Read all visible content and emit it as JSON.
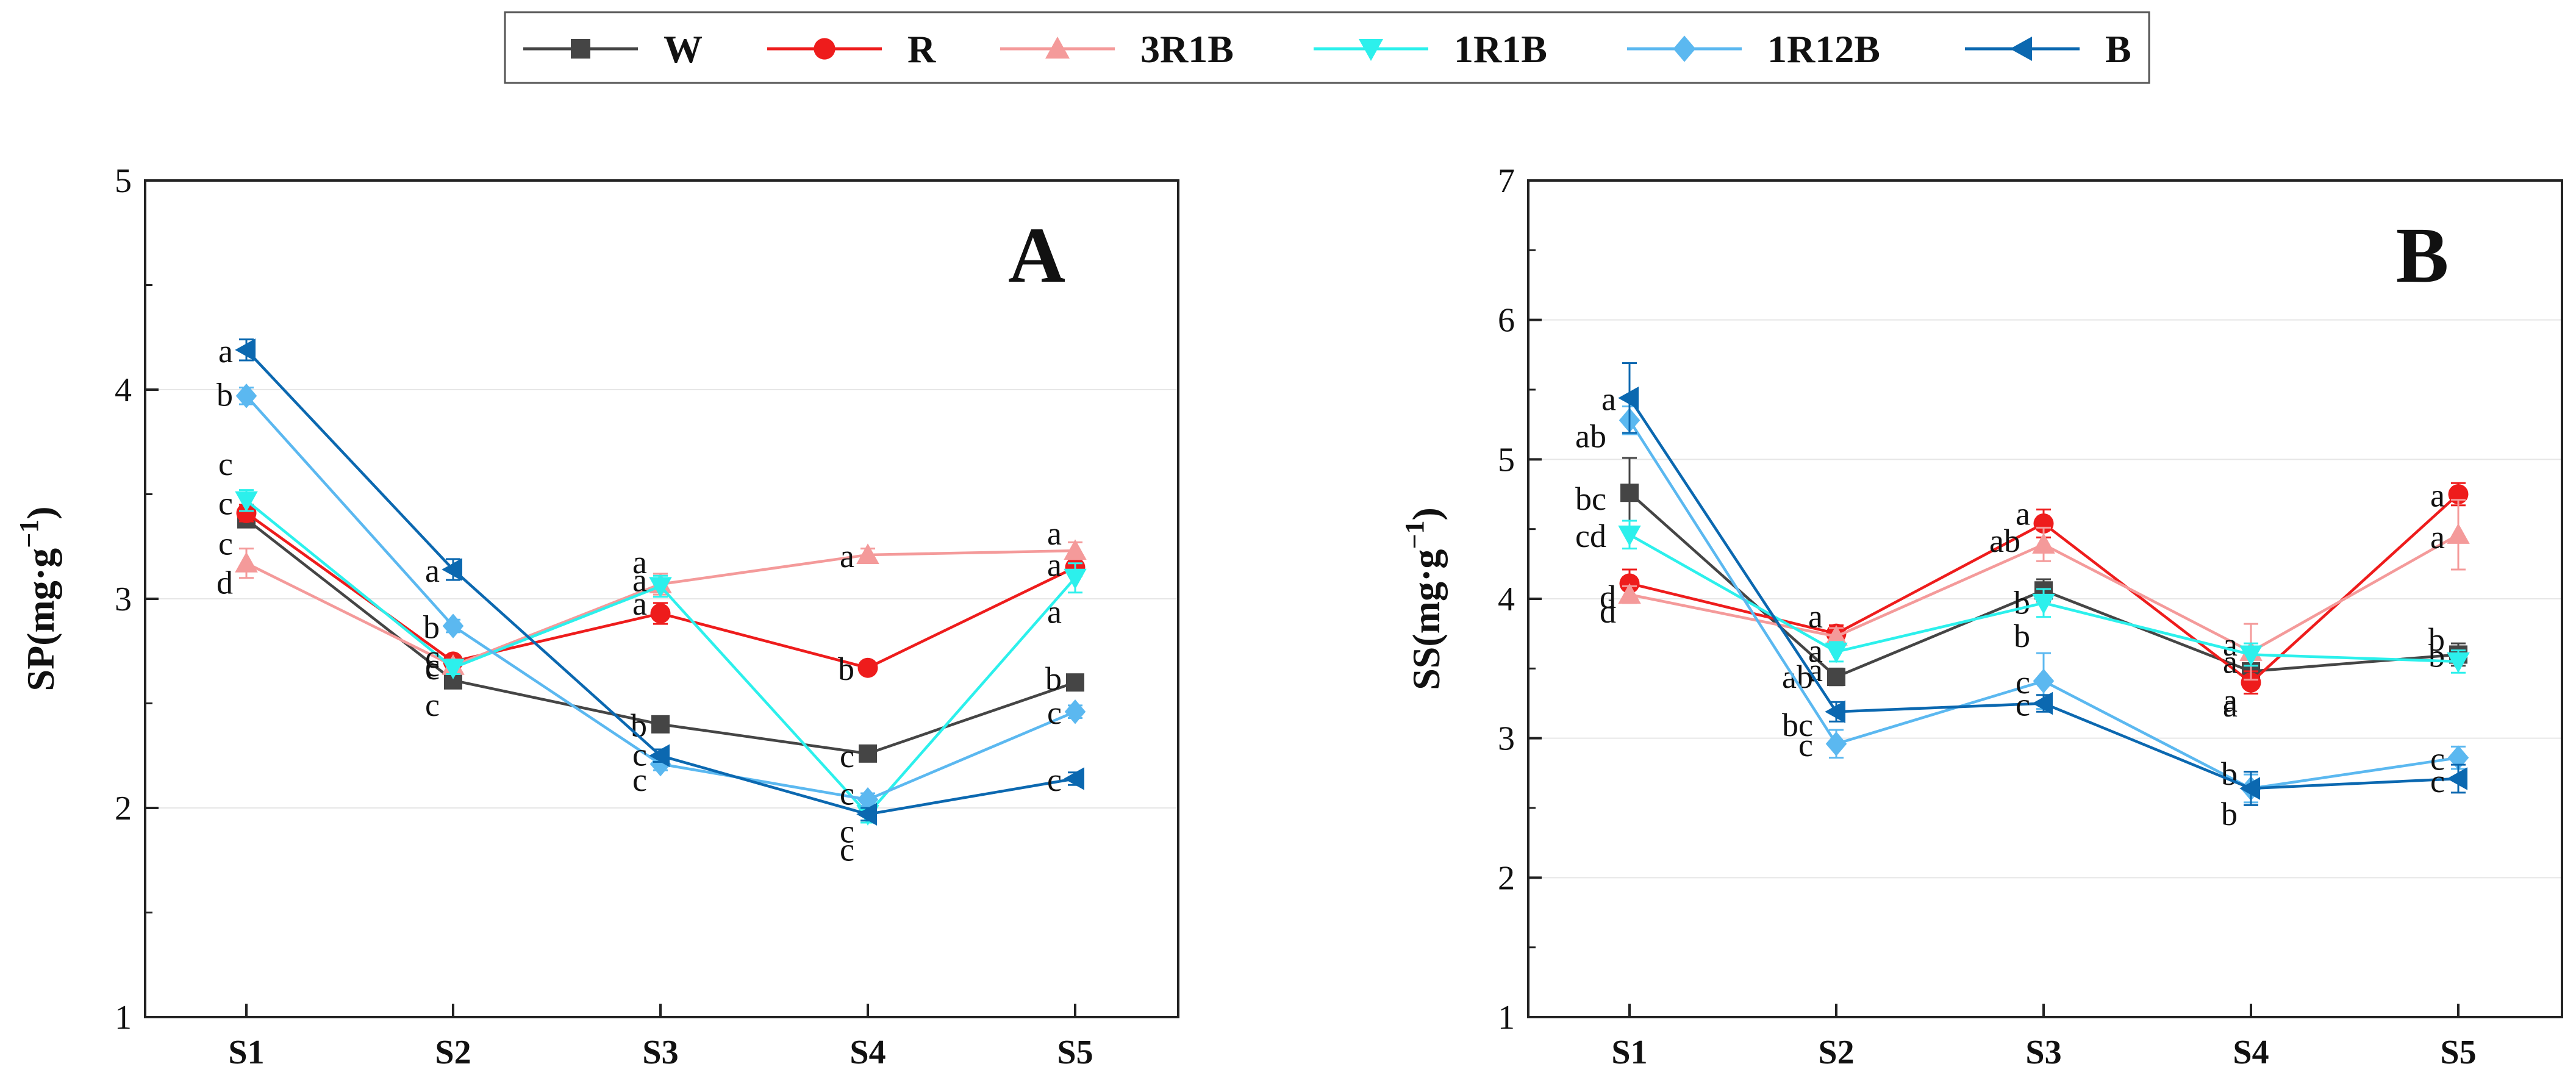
{
  "legend": [
    {
      "name": "W",
      "color": "#454545",
      "marker": "square"
    },
    {
      "name": "R",
      "color": "#ee1c1c",
      "marker": "circle"
    },
    {
      "name": "3R1B",
      "color": "#f49a9a",
      "marker": "triangle-up"
    },
    {
      "name": "1R1B",
      "color": "#2cf0ec",
      "marker": "triangle-down"
    },
    {
      "name": "1R12B",
      "color": "#5bb8f0",
      "marker": "diamond"
    },
    {
      "name": "B",
      "color": "#0b68b0",
      "marker": "triangle-left"
    }
  ],
  "chart_data": [
    {
      "type": "line",
      "panel": "A",
      "ylabel": "SP(mg·g",
      "ylabel_sup": "−1",
      "ylabel_close": ")",
      "ylim": [
        1,
        5
      ],
      "yticks": [
        "1",
        "2",
        "3",
        "4",
        "5"
      ],
      "categories": [
        "S1",
        "S2",
        "S3",
        "S4",
        "S5"
      ],
      "series": [
        {
          "name": "W",
          "values": [
            3.38,
            2.61,
            2.4,
            2.26,
            2.6
          ],
          "errors": [
            0.03,
            0.03,
            0.03,
            0.03,
            0.03
          ],
          "labels": [
            "c",
            "c",
            "b",
            "c",
            "b"
          ]
        },
        {
          "name": "R",
          "values": [
            3.41,
            2.7,
            2.93,
            2.67,
            3.15
          ],
          "errors": [
            0.04,
            0.03,
            0.05,
            0.03,
            0.04
          ],
          "labels": [
            "c",
            "c",
            "a",
            "b",
            "a"
          ]
        },
        {
          "name": "3R1B",
          "values": [
            3.17,
            2.68,
            3.07,
            3.21,
            3.23
          ],
          "errors": [
            0.07,
            0.03,
            0.05,
            0.03,
            0.04
          ],
          "labels": [
            "d",
            "c",
            "a",
            "a",
            "a"
          ]
        },
        {
          "name": "1R1B",
          "values": [
            3.47,
            2.67,
            3.06,
            1.97,
            3.1
          ],
          "errors": [
            0.05,
            0.03,
            0.05,
            0.04,
            0.07
          ],
          "labels": [
            "c",
            "c",
            "a",
            "c",
            "a"
          ]
        },
        {
          "name": "1R12B",
          "values": [
            3.97,
            2.87,
            2.21,
            2.04,
            2.46
          ],
          "errors": [
            0.04,
            0.03,
            0.03,
            0.03,
            0.03
          ],
          "labels": [
            "b",
            "b",
            "c",
            "c",
            "c"
          ]
        },
        {
          "name": "B",
          "values": [
            4.19,
            3.14,
            2.25,
            1.97,
            2.14
          ],
          "errors": [
            0.05,
            0.05,
            0.03,
            0.03,
            0.03
          ],
          "labels": [
            "a",
            "a",
            "c",
            "c",
            "c"
          ]
        }
      ]
    },
    {
      "type": "line",
      "panel": "B",
      "ylabel": "SS(mg·g",
      "ylabel_sup": "−1",
      "ylabel_close": ")",
      "ylim": [
        1,
        7
      ],
      "yticks": [
        "1",
        "2",
        "3",
        "4",
        "5",
        "6",
        "7"
      ],
      "categories": [
        "S1",
        "S2",
        "S3",
        "S4",
        "S5"
      ],
      "series": [
        {
          "name": "W",
          "values": [
            4.76,
            3.44,
            4.06,
            3.48,
            3.6
          ],
          "errors": [
            0.25,
            0.06,
            0.08,
            0.1,
            0.08
          ],
          "labels": [
            "bc",
            "ab",
            "b",
            "a",
            "b"
          ]
        },
        {
          "name": "R",
          "values": [
            4.11,
            3.75,
            4.54,
            3.4,
            4.75
          ],
          "errors": [
            0.1,
            0.06,
            0.1,
            0.08,
            0.08
          ],
          "labels": [
            "d",
            "a",
            "a",
            "a",
            "a"
          ]
        },
        {
          "name": "3R1B",
          "values": [
            4.03,
            3.73,
            4.39,
            3.62,
            4.46
          ],
          "errors": [
            0.06,
            0.06,
            0.12,
            0.2,
            0.25
          ],
          "labels": [
            "d",
            "a",
            "ab",
            "a",
            "a"
          ]
        },
        {
          "name": "1R1B",
          "values": [
            4.46,
            3.62,
            3.97,
            3.6,
            3.55
          ],
          "errors": [
            0.1,
            0.07,
            0.1,
            0.08,
            0.08
          ],
          "labels": [
            "cd",
            "a",
            "b",
            "a",
            "b"
          ]
        },
        {
          "name": "1R12B",
          "values": [
            5.28,
            2.96,
            3.41,
            2.64,
            2.86
          ],
          "errors": [
            0.1,
            0.1,
            0.2,
            0.1,
            0.08
          ],
          "labels": [
            "ab",
            "c",
            "c",
            "b",
            "c"
          ]
        },
        {
          "name": "B",
          "values": [
            5.44,
            3.19,
            3.25,
            2.64,
            2.71
          ],
          "errors": [
            0.25,
            0.07,
            0.06,
            0.12,
            0.1
          ],
          "labels": [
            "a",
            "bc",
            "c",
            "b",
            "c"
          ]
        }
      ]
    }
  ]
}
